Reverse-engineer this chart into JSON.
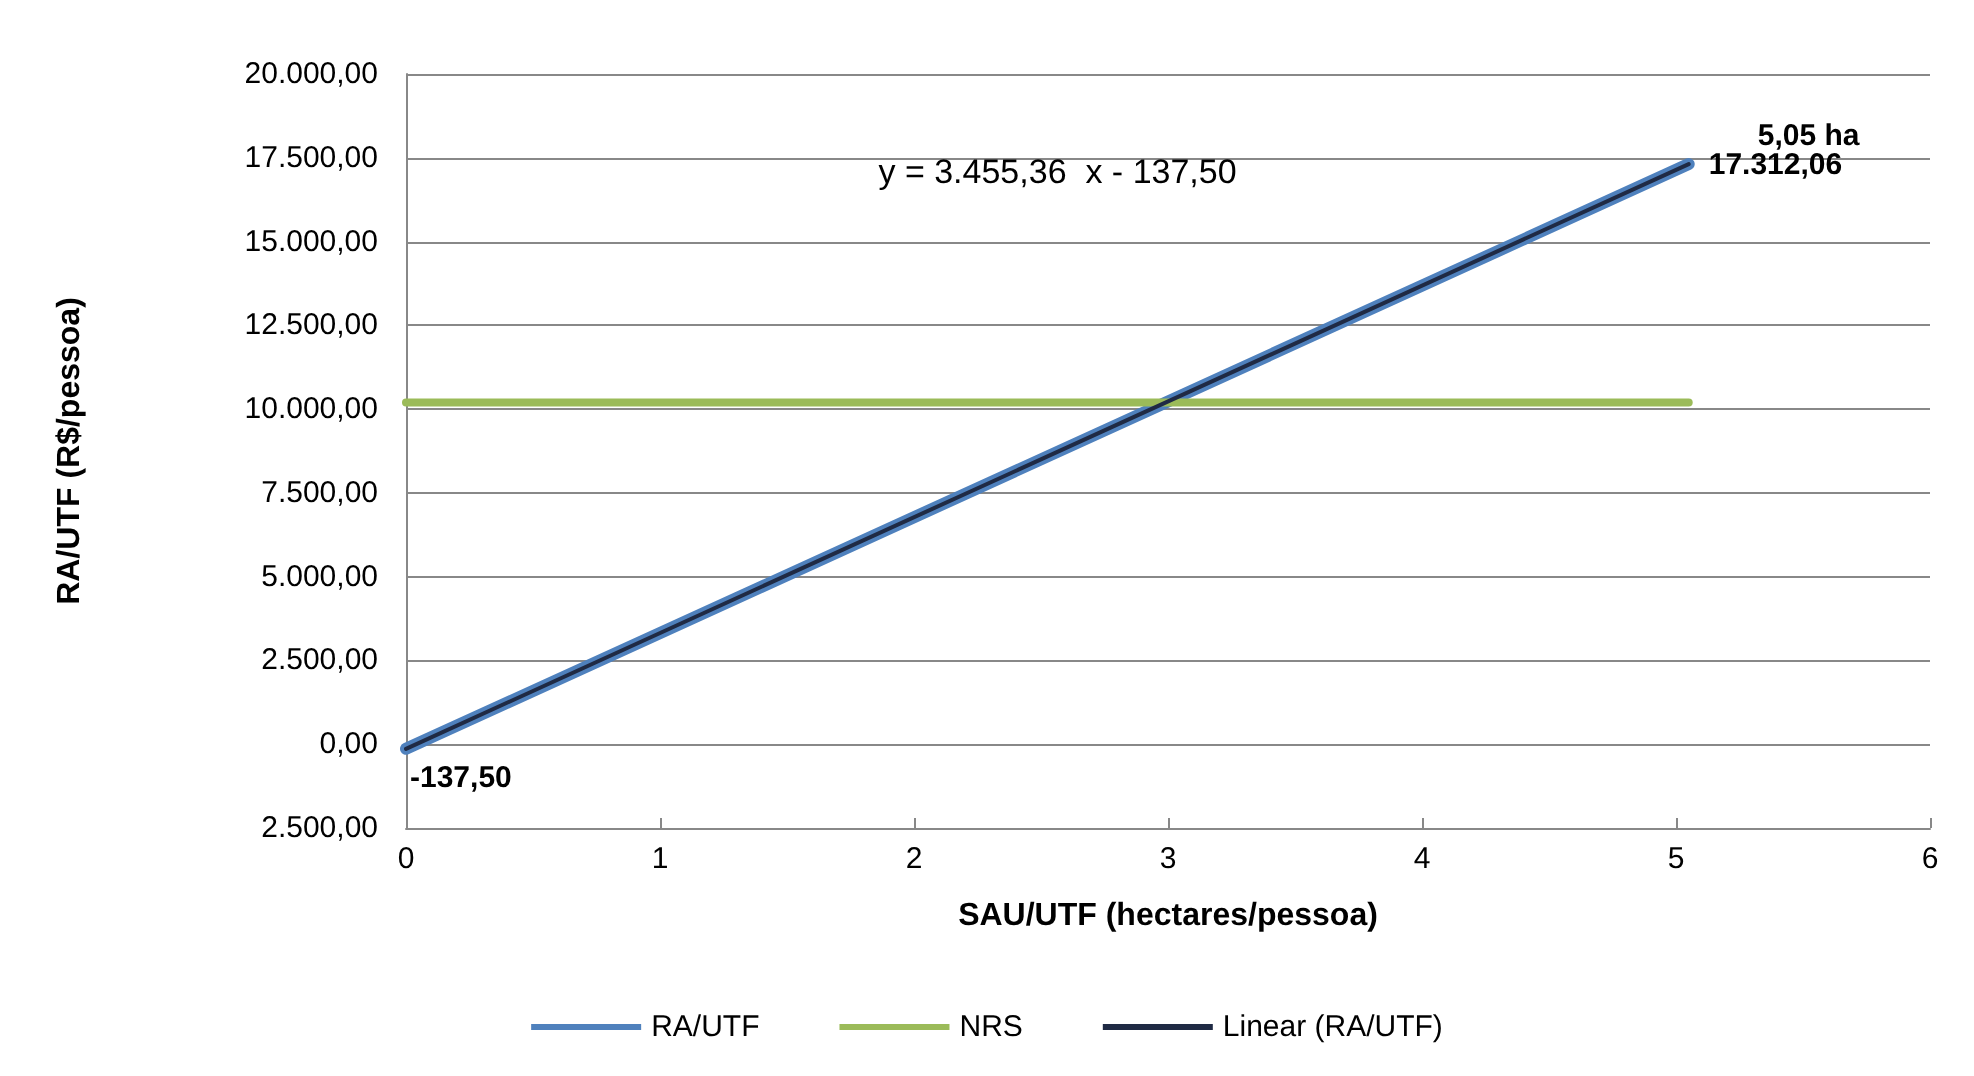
{
  "chart_data": {
    "type": "line",
    "xlabel": "SAU/UTF (hectares/pessoa)",
    "ylabel": "RA/UTF (R$/pessoa)",
    "series": [
      {
        "name": "RA/UTF",
        "color": "#4f81bd",
        "values": [
          -137.5,
          17312.06
        ],
        "value_labels": [
          "-137,50",
          "17.312,06"
        ]
      },
      {
        "name": "NRS",
        "color": "#9bbb59",
        "values": [
          10200,
          10200
        ]
      },
      {
        "name": "Linear (RA/UTF)",
        "color": "#1f2a44",
        "values": [
          -137.5,
          17312.06
        ]
      }
    ],
    "x": [
      0,
      5.05
    ],
    "xlim": [
      0,
      6
    ],
    "xticks": [
      0,
      1,
      2,
      3,
      4,
      5,
      6
    ],
    "ylim": [
      -2500,
      20000
    ],
    "yticks": [
      {
        "value": -2500,
        "label": "2.500,00"
      },
      {
        "value": 0,
        "label": "0,00"
      },
      {
        "value": 2500,
        "label": "2.500,00"
      },
      {
        "value": 5000,
        "label": "5.000,00"
      },
      {
        "value": 7500,
        "label": "7.500,00"
      },
      {
        "value": 10000,
        "label": "10.000,00"
      },
      {
        "value": 12500,
        "label": "12.500,00"
      },
      {
        "value": 15000,
        "label": "15.000,00"
      },
      {
        "value": 17500,
        "label": "17.500,00"
      },
      {
        "value": 20000,
        "label": "20.000,00"
      }
    ],
    "annotations": [
      "y = 3.455,36  x - 137,50",
      {
        "text": "5,05 ha",
        "x": 5.05,
        "y": 17312.06
      }
    ],
    "grid": "y",
    "legend": "bottom",
    "marker": "none",
    "line_style": "solid"
  }
}
